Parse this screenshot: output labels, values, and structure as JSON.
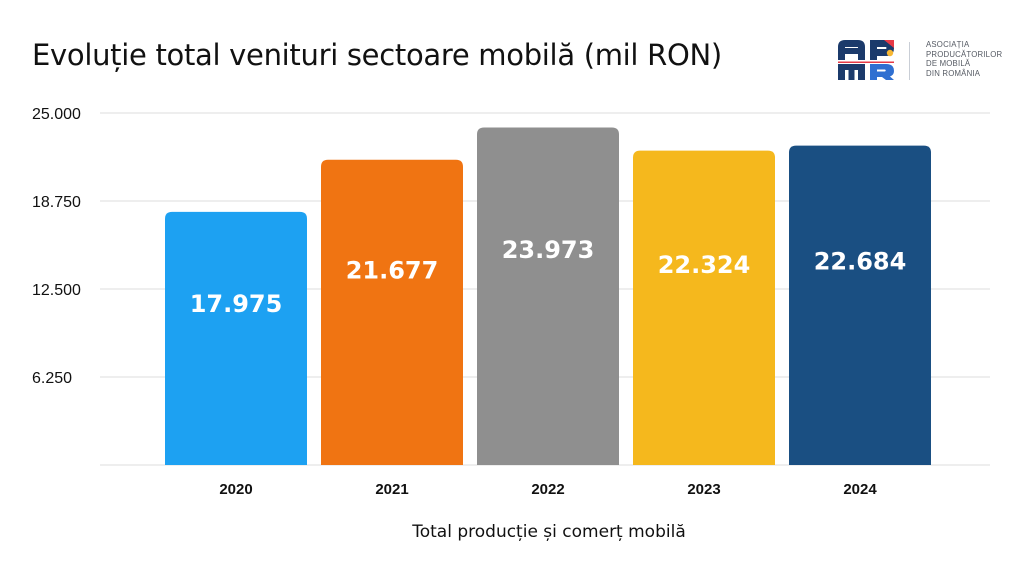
{
  "chart_data": {
    "type": "bar",
    "title": "Evoluție total venituri sectoare mobilă (mil RON)",
    "xlabel": "Total producție și comerț mobilă",
    "ylabel": "",
    "categories": [
      "2020",
      "2021",
      "2022",
      "2023",
      "2024"
    ],
    "values": [
      17975,
      21677,
      23973,
      22324,
      22684
    ],
    "data_labels": [
      "17.975",
      "21.677",
      "23.973",
      "22.324",
      "22.684"
    ],
    "colors": [
      "#1da1f2",
      "#f07412",
      "#8f8f8f",
      "#f5b81d",
      "#1a4f82"
    ],
    "ylim": [
      0,
      25000
    ],
    "yticks": [
      6250,
      12500,
      18750,
      25000
    ],
    "ytick_labels": [
      "6.250",
      "12.500",
      "18.750",
      "25.000"
    ],
    "grid": true,
    "legend": "none"
  },
  "logo": {
    "mark": "APMR",
    "lines": [
      "ASOCIAȚIA",
      "PRODUCĂTORILOR",
      "DE MOBILĂ",
      "DIN ROMÂNIA"
    ],
    "colors": {
      "navy": "#1b3a6b",
      "red": "#e63946",
      "yellow": "#f7b733",
      "blue": "#2f6fd1"
    }
  }
}
